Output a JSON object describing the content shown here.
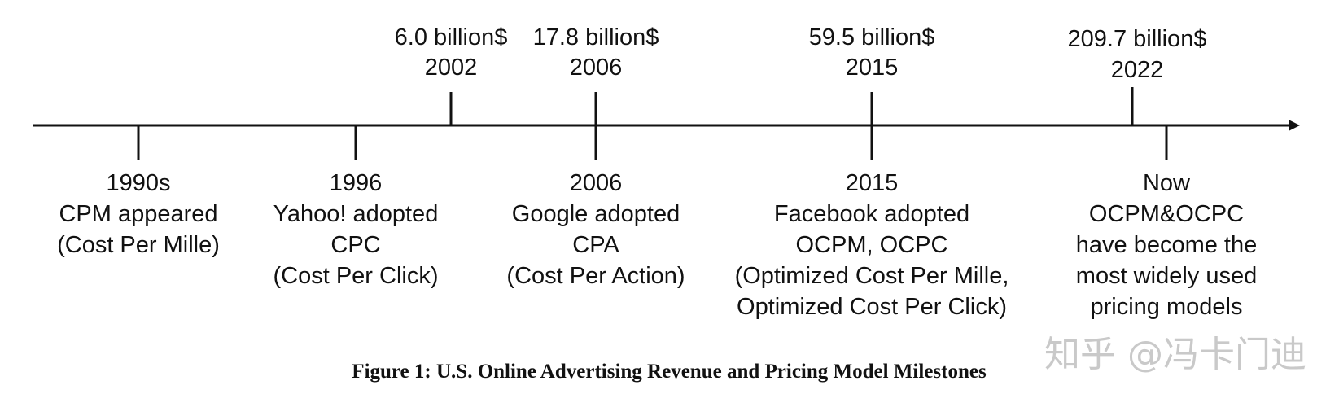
{
  "revenue_milestones": [
    {
      "amount": "6.0 billion$",
      "year": "2002"
    },
    {
      "amount": "17.8 billion$",
      "year": "2006"
    },
    {
      "amount": "59.5 billion$",
      "year": "2015"
    },
    {
      "amount": "209.7 billion$",
      "year": "2022"
    }
  ],
  "pricing_milestones": [
    {
      "lines": [
        "1990s",
        "CPM appeared",
        "(Cost Per Mille)"
      ]
    },
    {
      "lines": [
        "1996",
        "Yahoo! adopted",
        "CPC",
        "(Cost Per Click)"
      ]
    },
    {
      "lines": [
        "2006",
        "Google adopted",
        "CPA",
        "(Cost Per Action)"
      ]
    },
    {
      "lines": [
        "2015",
        "Facebook adopted",
        "OCPM, OCPC",
        "(Optimized Cost Per Mille,",
        "Optimized Cost Per Click)"
      ]
    },
    {
      "lines": [
        "Now",
        "OCPM&OCPC",
        "have become the",
        "most widely used",
        "pricing models"
      ]
    }
  ],
  "caption": "Figure 1: U.S. Online Advertising Revenue and Pricing Model Milestones",
  "watermark": "知乎 @冯卡门迪",
  "colors": {
    "line": "#111111",
    "text": "#111111",
    "watermark": "#c9c9c9"
  }
}
